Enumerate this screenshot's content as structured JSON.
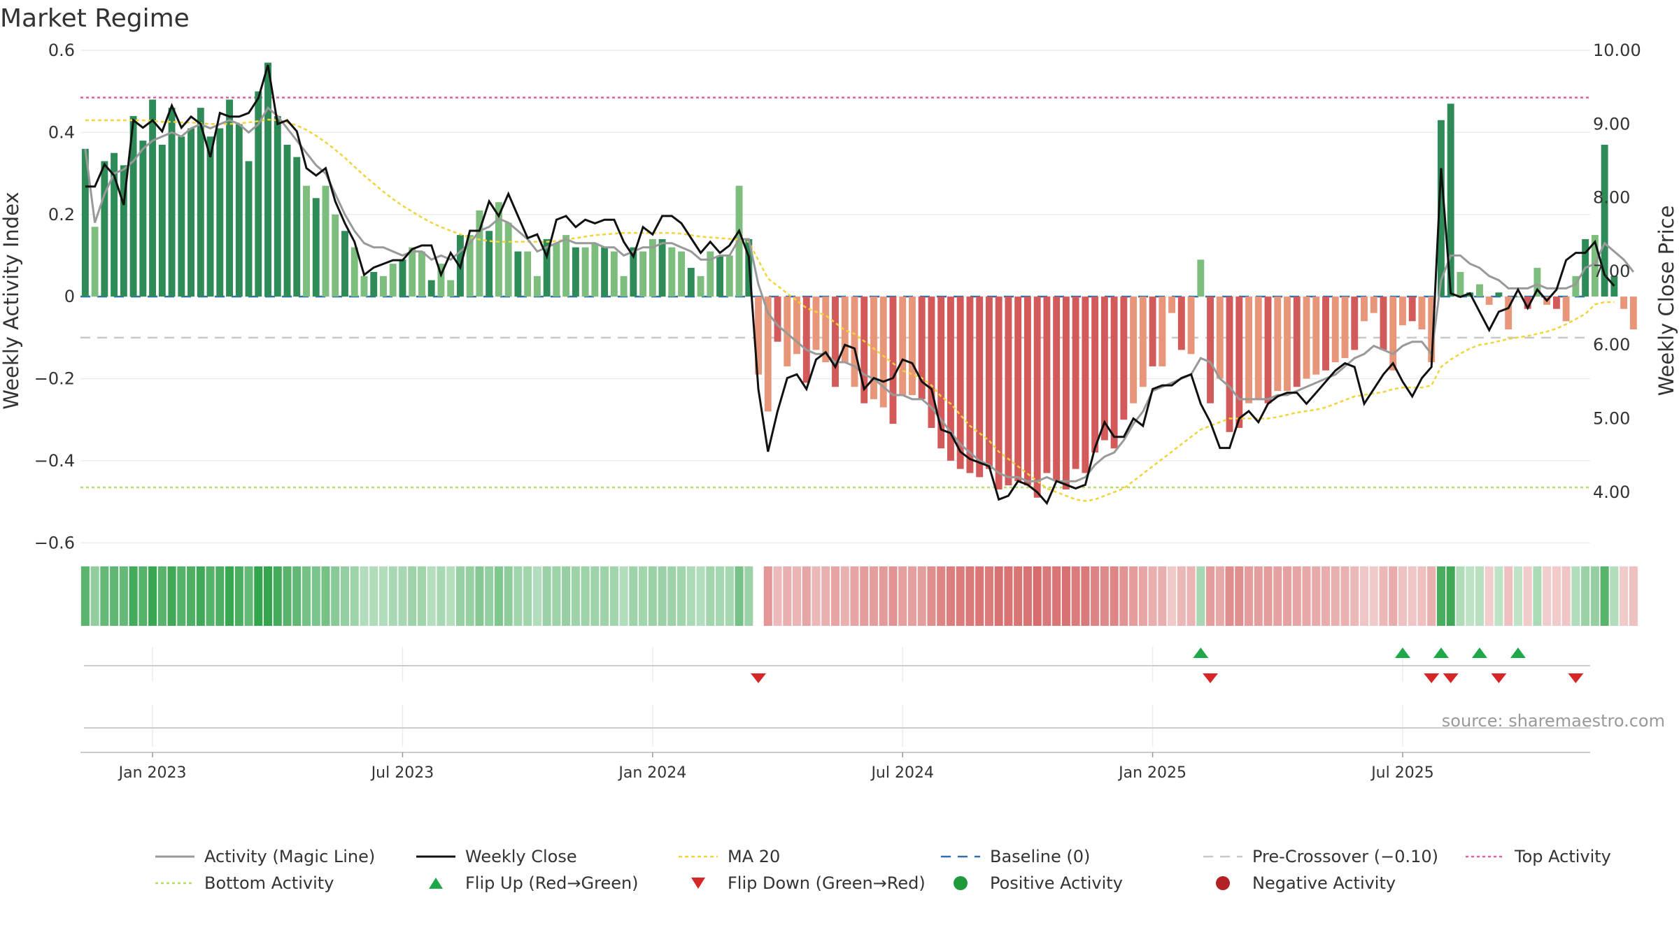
{
  "chart_data": {
    "type": "bar",
    "title": "Market Regime",
    "ylabel": "Weekly Activity Index",
    "y2label": "Weekly Close Price",
    "source": "source: sharemaestro.com",
    "ylim": [
      -0.62,
      0.6
    ],
    "y2lim": [
      3.2,
      10.0
    ],
    "yticks": [
      {
        "v": 0.6,
        "label": "0.6"
      },
      {
        "v": 0.4,
        "label": "0.4"
      },
      {
        "v": 0.2,
        "label": "0.2"
      },
      {
        "v": 0,
        "label": "0"
      },
      {
        "v": -0.2,
        "label": "−0.2"
      },
      {
        "v": -0.4,
        "label": "−0.4"
      },
      {
        "v": -0.6,
        "label": "−0.6"
      }
    ],
    "y2ticks": [
      {
        "v": 10,
        "label": "10.00"
      },
      {
        "v": 9,
        "label": "9.00"
      },
      {
        "v": 8,
        "label": "8.00"
      },
      {
        "v": 7,
        "label": "7.00"
      },
      {
        "v": 6,
        "label": "6.00"
      },
      {
        "v": 5,
        "label": "5.00"
      },
      {
        "v": 4,
        "label": "4.00"
      }
    ],
    "xticks": [
      {
        "i": 7,
        "label": "Jan 2023"
      },
      {
        "i": 33,
        "label": "Jul 2023"
      },
      {
        "i": 59,
        "label": "Jan 2024"
      },
      {
        "i": 85,
        "label": "Jul 2024"
      },
      {
        "i": 111,
        "label": "Jan 2025"
      },
      {
        "i": 137,
        "label": "Jul 2025"
      }
    ],
    "first_week": "2022-09-18",
    "weeks": 157,
    "grid": true,
    "reference_lines": {
      "baseline": 0,
      "pre_crossover": -0.1,
      "top_activity": 0.485,
      "bottom_activity": -0.465
    },
    "activity_index": [
      0.36,
      0.17,
      0.33,
      0.35,
      0.32,
      0.44,
      0.38,
      0.48,
      0.37,
      0.46,
      0.39,
      0.41,
      0.46,
      0.39,
      0.41,
      0.48,
      0.42,
      0.33,
      0.5,
      0.57,
      0.44,
      0.37,
      0.34,
      0.27,
      0.24,
      0.27,
      0.2,
      0.16,
      0.12,
      0.05,
      0.06,
      0.05,
      0.08,
      0.09,
      0.12,
      0.11,
      0.04,
      0.08,
      0.04,
      0.15,
      0.15,
      0.21,
      0.16,
      0.23,
      0.18,
      0.11,
      0.11,
      0.05,
      0.14,
      0.13,
      0.15,
      0.12,
      0.12,
      0.13,
      0.12,
      0.11,
      0.05,
      0.12,
      0.11,
      0.14,
      0.14,
      0.12,
      0.11,
      0.07,
      0.05,
      0.11,
      0.1,
      0.1,
      0.27,
      0.14,
      -0.19,
      -0.28,
      -0.11,
      -0.17,
      -0.14,
      -0.21,
      -0.13,
      -0.16,
      -0.22,
      -0.16,
      -0.22,
      -0.26,
      -0.25,
      -0.27,
      -0.31,
      -0.24,
      -0.24,
      -0.25,
      -0.32,
      -0.37,
      -0.4,
      -0.42,
      -0.43,
      -0.44,
      -0.42,
      -0.47,
      -0.46,
      -0.45,
      -0.46,
      -0.49,
      -0.43,
      -0.45,
      -0.47,
      -0.42,
      -0.43,
      -0.38,
      -0.35,
      -0.37,
      -0.3,
      -0.26,
      -0.22,
      -0.17,
      -0.17,
      -0.04,
      -0.13,
      -0.14,
      0.09,
      -0.26,
      -0.2,
      -0.33,
      -0.32,
      -0.26,
      -0.25,
      -0.26,
      -0.23,
      -0.23,
      -0.22,
      -0.2,
      -0.19,
      -0.18,
      -0.16,
      -0.15,
      -0.13,
      -0.06,
      -0.04,
      -0.13,
      -0.18,
      -0.07,
      -0.06,
      -0.08,
      -0.16,
      0.43,
      0.47,
      0.06,
      0.01,
      0.03,
      -0.02,
      0.01,
      -0.08,
      0.0,
      -0.03,
      0.07,
      -0.02,
      -0.03,
      -0.06,
      0.05,
      0.14,
      0.15,
      0.37,
      0.05,
      -0.03,
      -0.08
    ],
    "weekly_close": [
      8.15,
      8.15,
      8.45,
      8.3,
      7.9,
      9.05,
      8.95,
      9.05,
      8.9,
      9.25,
      8.95,
      9.1,
      9.0,
      8.55,
      9.15,
      9.1,
      9.1,
      9.15,
      9.35,
      9.8,
      9.0,
      9.05,
      8.9,
      8.4,
      8.3,
      8.4,
      7.95,
      7.65,
      7.4,
      6.95,
      7.05,
      7.1,
      7.15,
      7.15,
      7.3,
      7.35,
      7.35,
      6.95,
      7.25,
      7.05,
      7.55,
      7.55,
      7.95,
      7.75,
      8.05,
      7.75,
      7.45,
      7.5,
      7.2,
      7.7,
      7.75,
      7.6,
      7.7,
      7.65,
      7.7,
      7.7,
      7.4,
      7.2,
      7.6,
      7.5,
      7.75,
      7.75,
      7.65,
      7.45,
      7.25,
      7.4,
      7.25,
      7.35,
      7.55,
      7.2,
      5.4,
      4.55,
      5.1,
      5.55,
      5.6,
      5.4,
      5.8,
      5.9,
      5.7,
      6.0,
      5.95,
      5.4,
      5.55,
      5.5,
      5.55,
      5.8,
      5.75,
      5.5,
      5.4,
      4.85,
      4.8,
      4.55,
      4.45,
      4.4,
      4.35,
      3.9,
      3.95,
      4.15,
      4.1,
      4.0,
      3.85,
      4.15,
      4.1,
      4.05,
      4.1,
      4.6,
      4.95,
      4.75,
      4.75,
      5.0,
      4.9,
      5.4,
      5.45,
      5.45,
      5.55,
      5.6,
      5.2,
      4.95,
      4.6,
      4.6,
      5.0,
      5.1,
      4.95,
      5.2,
      5.3,
      5.35,
      5.35,
      5.2,
      5.35,
      5.5,
      5.65,
      5.75,
      5.7,
      5.2,
      5.4,
      5.6,
      5.75,
      5.5,
      5.3,
      5.55,
      5.7,
      8.4,
      6.7,
      6.65,
      6.7,
      6.45,
      6.2,
      6.45,
      6.5,
      6.75,
      6.5,
      6.75,
      6.6,
      6.75,
      7.15,
      7.25,
      7.25,
      7.4,
      6.95,
      6.8
    ],
    "activity_magic_line": [
      0.36,
      0.18,
      0.25,
      0.3,
      0.31,
      0.33,
      0.36,
      0.38,
      0.39,
      0.4,
      0.39,
      0.41,
      0.42,
      0.41,
      0.42,
      0.43,
      0.42,
      0.4,
      0.42,
      0.46,
      0.44,
      0.41,
      0.38,
      0.35,
      0.32,
      0.3,
      0.25,
      0.2,
      0.16,
      0.13,
      0.12,
      0.12,
      0.11,
      0.1,
      0.11,
      0.11,
      0.09,
      0.1,
      0.09,
      0.11,
      0.13,
      0.16,
      0.17,
      0.19,
      0.18,
      0.16,
      0.14,
      0.11,
      0.12,
      0.13,
      0.14,
      0.13,
      0.13,
      0.13,
      0.12,
      0.12,
      0.1,
      0.11,
      0.12,
      0.12,
      0.13,
      0.13,
      0.12,
      0.11,
      0.09,
      0.09,
      0.1,
      0.1,
      0.14,
      0.14,
      0.03,
      -0.04,
      -0.07,
      -0.09,
      -0.11,
      -0.13,
      -0.14,
      -0.14,
      -0.16,
      -0.16,
      -0.17,
      -0.19,
      -0.2,
      -0.22,
      -0.24,
      -0.24,
      -0.25,
      -0.25,
      -0.27,
      -0.3,
      -0.33,
      -0.36,
      -0.38,
      -0.4,
      -0.41,
      -0.43,
      -0.44,
      -0.44,
      -0.45,
      -0.45,
      -0.44,
      -0.45,
      -0.45,
      -0.45,
      -0.44,
      -0.41,
      -0.39,
      -0.38,
      -0.35,
      -0.31,
      -0.28,
      -0.23,
      -0.22,
      -0.21,
      -0.2,
      -0.19,
      -0.15,
      -0.16,
      -0.2,
      -0.22,
      -0.25,
      -0.25,
      -0.25,
      -0.25,
      -0.24,
      -0.24,
      -0.23,
      -0.22,
      -0.21,
      -0.2,
      -0.19,
      -0.17,
      -0.15,
      -0.14,
      -0.12,
      -0.13,
      -0.14,
      -0.12,
      -0.11,
      -0.11,
      -0.14,
      0.04,
      0.1,
      0.1,
      0.08,
      0.07,
      0.05,
      0.04,
      0.02,
      0.02,
      0.02,
      0.03,
      0.02,
      0.02,
      0.02,
      0.03,
      0.07,
      0.08,
      0.13,
      0.11,
      0.09,
      0.06
    ],
    "ma20": [
      9.05,
      9.05,
      9.05,
      9.05,
      9.05,
      9.05,
      9.05,
      9.04,
      9.03,
      9.03,
      9.02,
      9.02,
      9.01,
      9.0,
      9.0,
      9.0,
      9.01,
      9.02,
      9.04,
      9.06,
      9.05,
      9.02,
      8.98,
      8.92,
      8.84,
      8.75,
      8.65,
      8.54,
      8.42,
      8.3,
      8.19,
      8.08,
      7.98,
      7.89,
      7.81,
      7.73,
      7.66,
      7.6,
      7.55,
      7.5,
      7.46,
      7.43,
      7.41,
      7.4,
      7.4,
      7.4,
      7.4,
      7.4,
      7.4,
      7.41,
      7.43,
      7.45,
      7.47,
      7.49,
      7.5,
      7.51,
      7.52,
      7.52,
      7.52,
      7.52,
      7.52,
      7.52,
      7.51,
      7.49,
      7.47,
      7.46,
      7.45,
      7.44,
      7.43,
      7.4,
      7.15,
      6.9,
      6.8,
      6.7,
      6.6,
      6.5,
      6.45,
      6.4,
      6.3,
      6.2,
      6.15,
      6.05,
      5.95,
      5.85,
      5.75,
      5.65,
      5.6,
      5.55,
      5.45,
      5.3,
      5.2,
      5.05,
      4.9,
      4.8,
      4.7,
      4.55,
      4.45,
      4.35,
      4.25,
      4.15,
      4.05,
      4.0,
      3.95,
      3.9,
      3.88,
      3.9,
      3.95,
      4.0,
      4.05,
      4.15,
      4.25,
      4.35,
      4.45,
      4.55,
      4.65,
      4.75,
      4.85,
      4.9,
      4.95,
      5.0,
      5.0,
      5.0,
      5.0,
      5.0,
      5.02,
      5.05,
      5.08,
      5.1,
      5.12,
      5.15,
      5.2,
      5.25,
      5.3,
      5.32,
      5.34,
      5.36,
      5.4,
      5.42,
      5.42,
      5.42,
      5.45,
      5.7,
      5.8,
      5.88,
      5.95,
      6.0,
      6.02,
      6.05,
      6.08,
      6.1,
      6.12,
      6.15,
      6.18,
      6.22,
      6.28,
      6.35,
      6.42,
      6.55,
      6.58,
      6.58
    ],
    "regime_strip_gap_index": 70,
    "flip_up": [
      116,
      137,
      141,
      145,
      149
    ],
    "flip_down": [
      70,
      117,
      140,
      142,
      147,
      155
    ],
    "legend": [
      {
        "key": "magic",
        "label": "Activity (Magic Line)"
      },
      {
        "key": "close",
        "label": "Weekly Close"
      },
      {
        "key": "ma",
        "label": "MA 20"
      },
      {
        "key": "baseline",
        "label": "Baseline (0)"
      },
      {
        "key": "precross",
        "label": "Pre-Crossover (−0.10)"
      },
      {
        "key": "top",
        "label": "Top Activity"
      },
      {
        "key": "bottom",
        "label": "Bottom Activity"
      },
      {
        "key": "flipup",
        "label": "Flip Up (Red→Green)"
      },
      {
        "key": "flipdown",
        "label": "Flip Down (Green→Red)"
      },
      {
        "key": "pos",
        "label": "Positive Activity"
      },
      {
        "key": "neg",
        "label": "Negative Activity"
      }
    ],
    "colors": {
      "pos_strong": "#2e8b57",
      "pos_light": "#7dbd7d",
      "neg_strong": "#d25a5a",
      "neg_light": "#e8967a",
      "magic": "#999999",
      "close": "#111111",
      "ma": "#f2d33a",
      "baseline": "#2b6fb3",
      "precross": "#c8c8c8",
      "top": "#e0609a",
      "bottom": "#b5dd66",
      "flipup": "#1fa84a",
      "flipdown": "#d62728",
      "pos_dot": "#1e9a3a",
      "neg_dot": "#b22222"
    }
  }
}
